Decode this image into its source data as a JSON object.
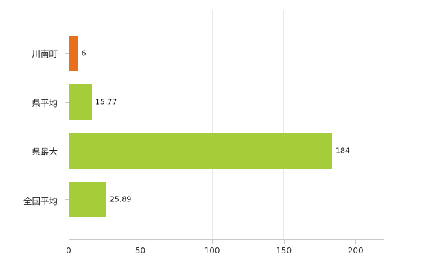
{
  "chart_data": {
    "type": "bar",
    "orientation": "horizontal",
    "categories": [
      "川南町",
      "県平均",
      "県最大",
      "全国平均"
    ],
    "values": [
      6,
      15.77,
      184,
      25.89
    ],
    "value_labels": [
      "6",
      "15.77",
      "184",
      "25.89"
    ],
    "bar_colors": [
      "#e8701a",
      "#a5cd3a",
      "#a5cd3a",
      "#a5cd3a"
    ],
    "xlim": [
      0,
      220
    ],
    "xticks": [
      0,
      50,
      100,
      150,
      200
    ],
    "grid": "vertical-gridlines-on",
    "legend": "none"
  },
  "colors": {
    "accent_orange": "#e8701a",
    "accent_green": "#a5cd3a",
    "axis": "#c9c9c9",
    "gridline": "#e9e9e9",
    "text": "#222222",
    "background": "#ffffff"
  }
}
